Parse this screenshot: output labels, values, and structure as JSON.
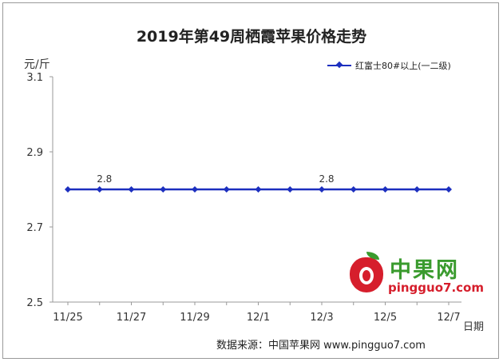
{
  "chart_data": {
    "type": "line",
    "title": "2019年第49周栖霞苹果价格走势",
    "ylabel": "元/斤",
    "xlabel": "日期",
    "ylim": [
      2.5,
      3.1
    ],
    "yticks": [
      "3.1",
      "2.9",
      "2.7",
      "2.5"
    ],
    "x": [
      "11/25",
      "11/26",
      "11/27",
      "11/28",
      "11/29",
      "11/30",
      "12/1",
      "12/2",
      "12/3",
      "12/4",
      "12/5",
      "12/6",
      "12/7"
    ],
    "xtick_labels": [
      "11/25",
      "11/27",
      "11/29",
      "12/1",
      "12/3",
      "12/5",
      "12/7"
    ],
    "series": [
      {
        "name": "红富士80#以上(一二级)",
        "values": [
          2.8,
          2.8,
          2.8,
          2.8,
          2.8,
          2.8,
          2.8,
          2.8,
          2.8,
          2.8,
          2.8,
          2.8,
          2.8
        ],
        "color": "#1c2fbf"
      }
    ],
    "data_labels": [
      {
        "x": "11/26",
        "text": "2.8"
      },
      {
        "x": "12/3",
        "text": "2.8"
      }
    ],
    "legend_position": "top-right",
    "grid": false
  },
  "source_text": "数据来源：中国苹果网 www.pingguo7.com",
  "logo": {
    "brand": "中果网",
    "url": "pingguo7.com"
  }
}
